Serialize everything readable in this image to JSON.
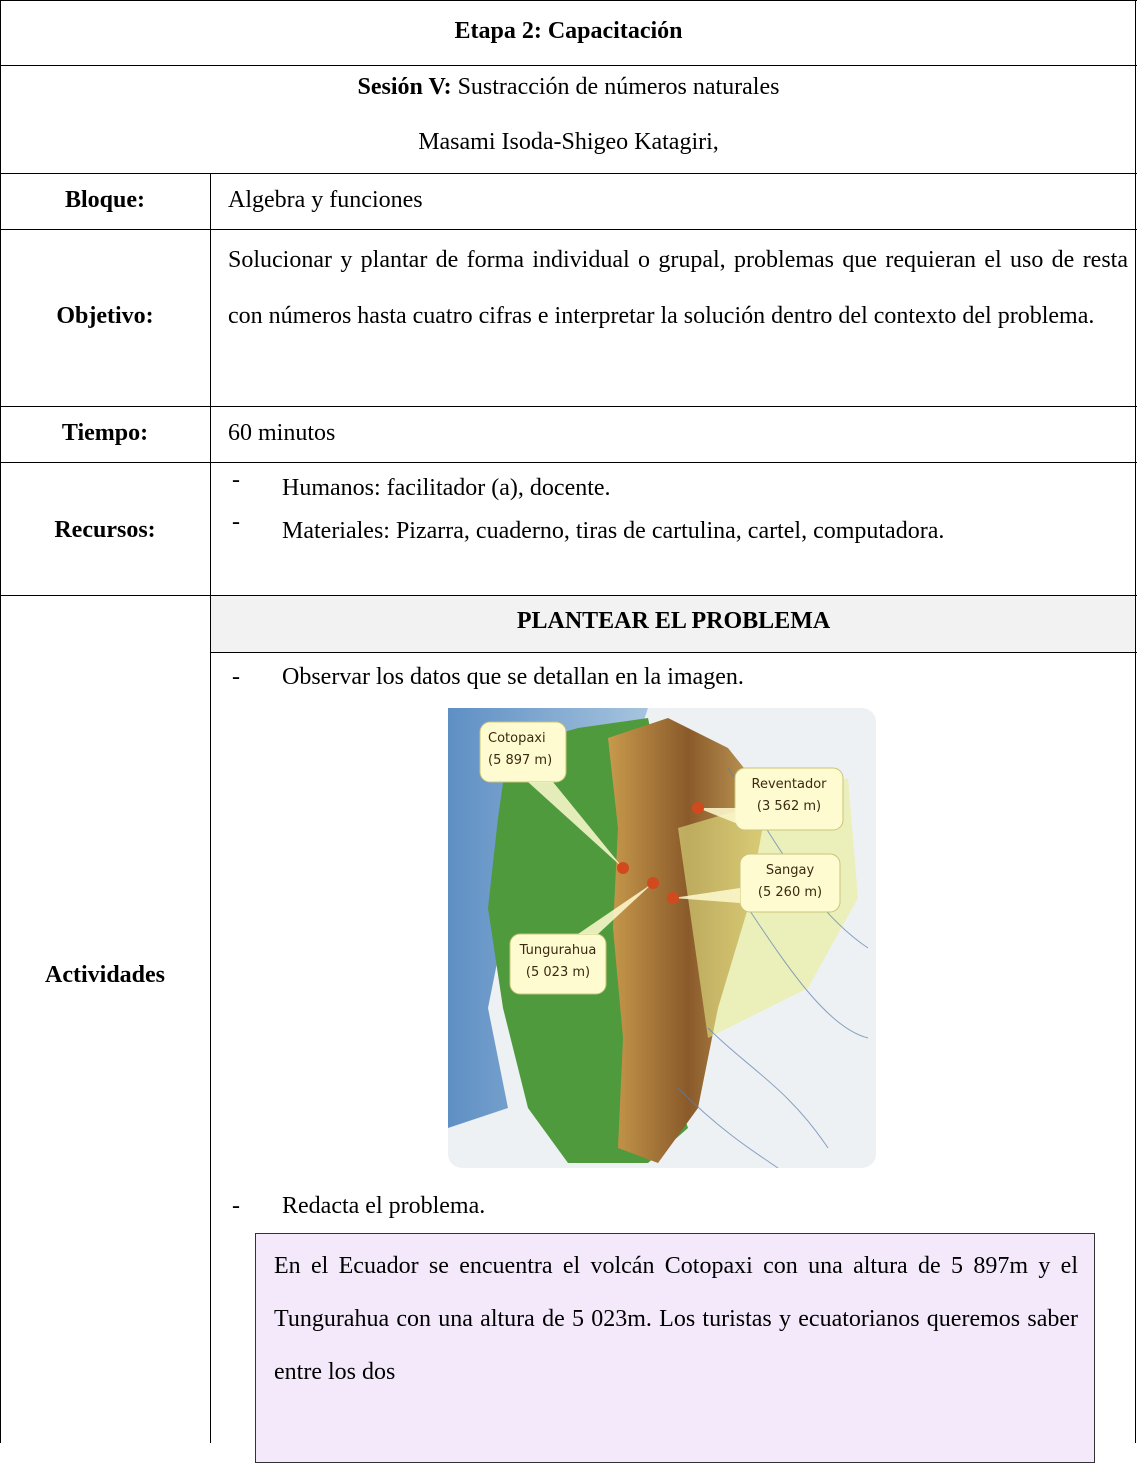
{
  "header": {
    "title": "Etapa 2: Capacitación"
  },
  "session": {
    "label": "Sesión V:",
    "text": "Sustracción de números naturales",
    "authors": "Masami Isoda-Shigeo Katagiri,"
  },
  "rows": {
    "bloque": {
      "label": "Bloque:",
      "value": "Algebra y funciones"
    },
    "objetivo": {
      "label": "Objetivo:",
      "value": "Solucionar y plantar de forma individual o grupal, problemas que requieran el uso de resta con números hasta cuatro cifras e interpretar la solución dentro del contexto del problema."
    },
    "tiempo": {
      "label": "Tiempo:",
      "value": "60 minutos"
    },
    "recursos": {
      "label": "Recursos:",
      "items": [
        "Humanos: facilitador (a), docente.",
        "Materiales: Pizarra, cuaderno, tiras de cartulina, cartel, computadora."
      ]
    },
    "actividades": {
      "label": "Actividades",
      "heading": "PLANTEAR EL PROBLEMA",
      "items": [
        "Observar los datos que se detallan en la imagen.",
        "Redacta el problema."
      ],
      "map_labels": [
        {
          "name": "Cotopaxi",
          "height": "(5 897 m)"
        },
        {
          "name": "Reventador",
          "height": "(3 562 m)"
        },
        {
          "name": "Sangay",
          "height": "(5 260 m)"
        },
        {
          "name": "Tungurahua",
          "height": "(5 023 m)"
        }
      ],
      "problem": "En el Ecuador se encuentra el volcán Cotopaxi con una altura de 5 897m y el Tungurahua con una altura de 5 023m. Los turistas y ecuatorianos queremos saber entre los dos"
    }
  }
}
